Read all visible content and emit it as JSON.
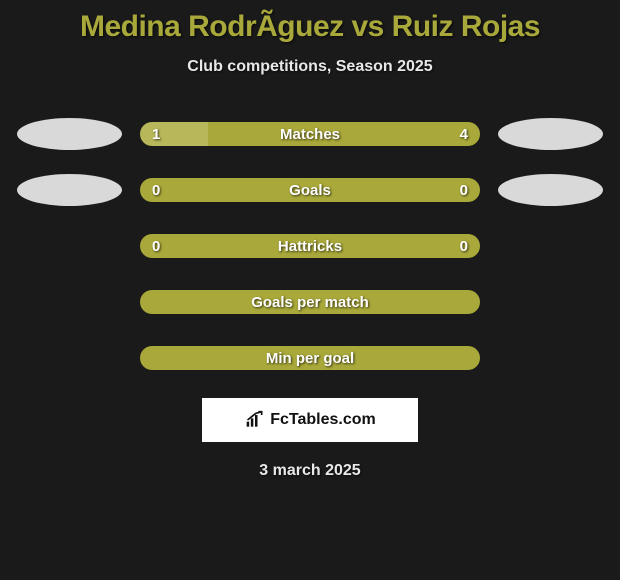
{
  "title": "Medina RodrÃ­guez vs Ruiz Rojas",
  "subtitle": "Club competitions, Season 2025",
  "date": "3 march 2025",
  "branding": {
    "text": "FcTables.com"
  },
  "colors": {
    "background": "#1a1a1a",
    "accent": "#a9a83a",
    "text_light": "#e8e8e8",
    "white": "#ffffff",
    "ellipse": "#d9d9d9",
    "bar_muted": "#b8b75a"
  },
  "stats": [
    {
      "label": "Matches",
      "left_value": "1",
      "right_value": "4",
      "left_share": 20,
      "right_share": 80,
      "left_color": "#b8b75a",
      "right_color": "#a9a83a",
      "show_ellipses": true
    },
    {
      "label": "Goals",
      "left_value": "0",
      "right_value": "0",
      "left_share": 50,
      "right_share": 50,
      "left_color": "#a9a83a",
      "right_color": "#a9a83a",
      "show_ellipses": true
    },
    {
      "label": "Hattricks",
      "left_value": "0",
      "right_value": "0",
      "left_share": 50,
      "right_share": 50,
      "left_color": "#a9a83a",
      "right_color": "#a9a83a",
      "show_ellipses": false
    },
    {
      "label": "Goals per match",
      "left_value": "",
      "right_value": "",
      "left_share": 100,
      "right_share": 0,
      "left_color": "#a9a83a",
      "right_color": "#a9a83a",
      "show_ellipses": false
    },
    {
      "label": "Min per goal",
      "left_value": "",
      "right_value": "",
      "left_share": 100,
      "right_share": 0,
      "left_color": "#a9a83a",
      "right_color": "#a9a83a",
      "show_ellipses": false
    }
  ]
}
